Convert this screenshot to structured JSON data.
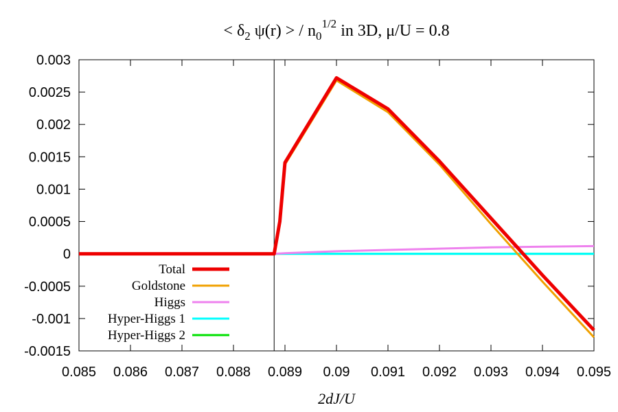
{
  "chart_data": {
    "type": "line",
    "title": {
      "prefix": "< δ",
      "sub1": "2",
      "mid": " ψ(r) > / n",
      "sub2": "0",
      "sup": "1/2",
      "suffix": " in 3D, μ/U = 0.8"
    },
    "xlabel": "2dJ/U",
    "ylabel": "",
    "xlim": [
      0.085,
      0.095
    ],
    "ylim": [
      -0.0015,
      0.003
    ],
    "xticks": [
      "0.085",
      "0.086",
      "0.087",
      "0.088",
      "0.089",
      "0.09",
      "0.091",
      "0.092",
      "0.093",
      "0.094",
      "0.095"
    ],
    "yticks": [
      "0.003",
      "0.0025",
      "0.002",
      "0.0015",
      "0.001",
      "0.0005",
      "0",
      "-0.0005",
      "-0.001",
      "-0.0015"
    ],
    "grid": false,
    "legend_position": "bottom-left",
    "critical_line_x": 0.08879,
    "series": [
      {
        "name": "Total",
        "color": "#ee0000",
        "width": 5,
        "points": [
          [
            0.085,
            0
          ],
          [
            0.08879,
            0
          ],
          [
            0.0889,
            0.0005
          ],
          [
            0.089,
            0.00141
          ],
          [
            0.09,
            0.00272
          ],
          [
            0.091,
            0.00224
          ],
          [
            0.092,
            0.00143
          ],
          [
            0.093,
            0.00055
          ],
          [
            0.094,
            -0.00033
          ],
          [
            0.095,
            -0.00118
          ]
        ]
      },
      {
        "name": "Goldstone",
        "color": "#f0a000",
        "width": 3,
        "points": [
          [
            0.085,
            0
          ],
          [
            0.08879,
            0
          ],
          [
            0.0889,
            0.0005
          ],
          [
            0.089,
            0.00138
          ],
          [
            0.09,
            0.00268
          ],
          [
            0.091,
            0.00219
          ],
          [
            0.092,
            0.00138
          ],
          [
            0.093,
            0.00046
          ],
          [
            0.094,
            -0.00043
          ],
          [
            0.095,
            -0.00129
          ]
        ]
      },
      {
        "name": "Higgs",
        "color": "#ee82ee",
        "width": 3,
        "points": [
          [
            0.085,
            0
          ],
          [
            0.08879,
            0
          ],
          [
            0.089,
            1e-05
          ],
          [
            0.09,
            4e-05
          ],
          [
            0.091,
            6e-05
          ],
          [
            0.092,
            8e-05
          ],
          [
            0.093,
            0.0001
          ],
          [
            0.094,
            0.00011
          ],
          [
            0.095,
            0.00012
          ]
        ]
      },
      {
        "name": "Hyper-Higgs 1",
        "color": "#00ffff",
        "width": 3,
        "points": [
          [
            0.085,
            0
          ],
          [
            0.095,
            0
          ]
        ]
      },
      {
        "name": "Hyper-Higgs 2",
        "color": "#00e000",
        "width": 3,
        "points": [
          [
            0.085,
            0
          ],
          [
            0.095,
            0
          ]
        ]
      }
    ]
  }
}
